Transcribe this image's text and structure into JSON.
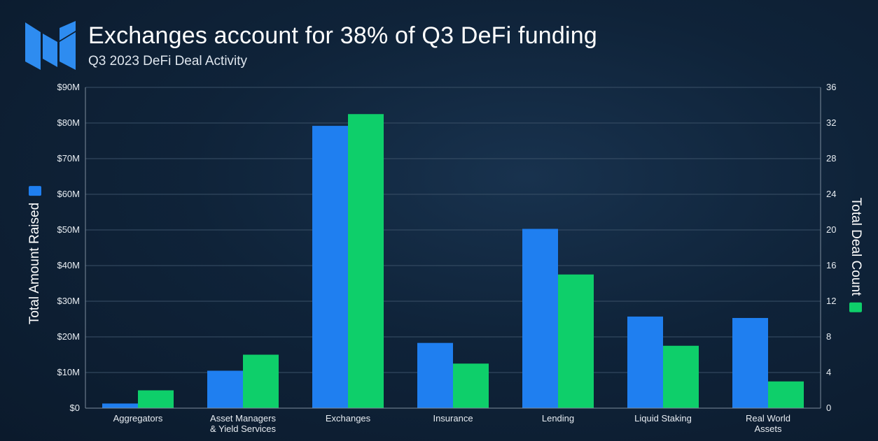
{
  "header": {
    "title": "Exchanges account for 38% of Q3 DeFi funding",
    "subtitle": "Q3 2023 DeFi Deal Activity"
  },
  "logo": {
    "icon": "messari-logo-icon",
    "color": "#2e8cf0"
  },
  "chart_data": {
    "type": "bar",
    "categories": [
      [
        "Aggregators"
      ],
      [
        "Asset Managers",
        "& Yield Services"
      ],
      [
        "Exchanges"
      ],
      [
        "Insurance"
      ],
      [
        "Lending"
      ],
      [
        "Liquid Staking"
      ],
      [
        "Real World",
        "Assets"
      ]
    ],
    "series": [
      {
        "name": "Total Amount Raised",
        "axis": "left",
        "color": "#1f7ff0",
        "values": [
          1.3,
          10.5,
          79.2,
          18.3,
          50.3,
          25.7,
          25.3
        ]
      },
      {
        "name": "Total Deal Count",
        "axis": "right",
        "color": "#0ecf6a",
        "values": [
          2,
          6,
          33,
          5,
          15,
          7,
          3
        ]
      }
    ],
    "ylabel_left": "Total Amount Raised",
    "ylabel_right": "Total Deal Count",
    "ylim_left": [
      0,
      90
    ],
    "ylim_right": [
      0,
      36
    ],
    "left_ticks": [
      "$0",
      "$10M",
      "$20M",
      "$30M",
      "$40M",
      "$50M",
      "$60M",
      "$70M",
      "$80M",
      "$90M"
    ],
    "right_ticks": [
      "0",
      "4",
      "8",
      "12",
      "16",
      "20",
      "24",
      "28",
      "32",
      "36"
    ],
    "grid": true,
    "gridline_color": "#3a5067",
    "axis_line_color": "#7d8c9c"
  }
}
